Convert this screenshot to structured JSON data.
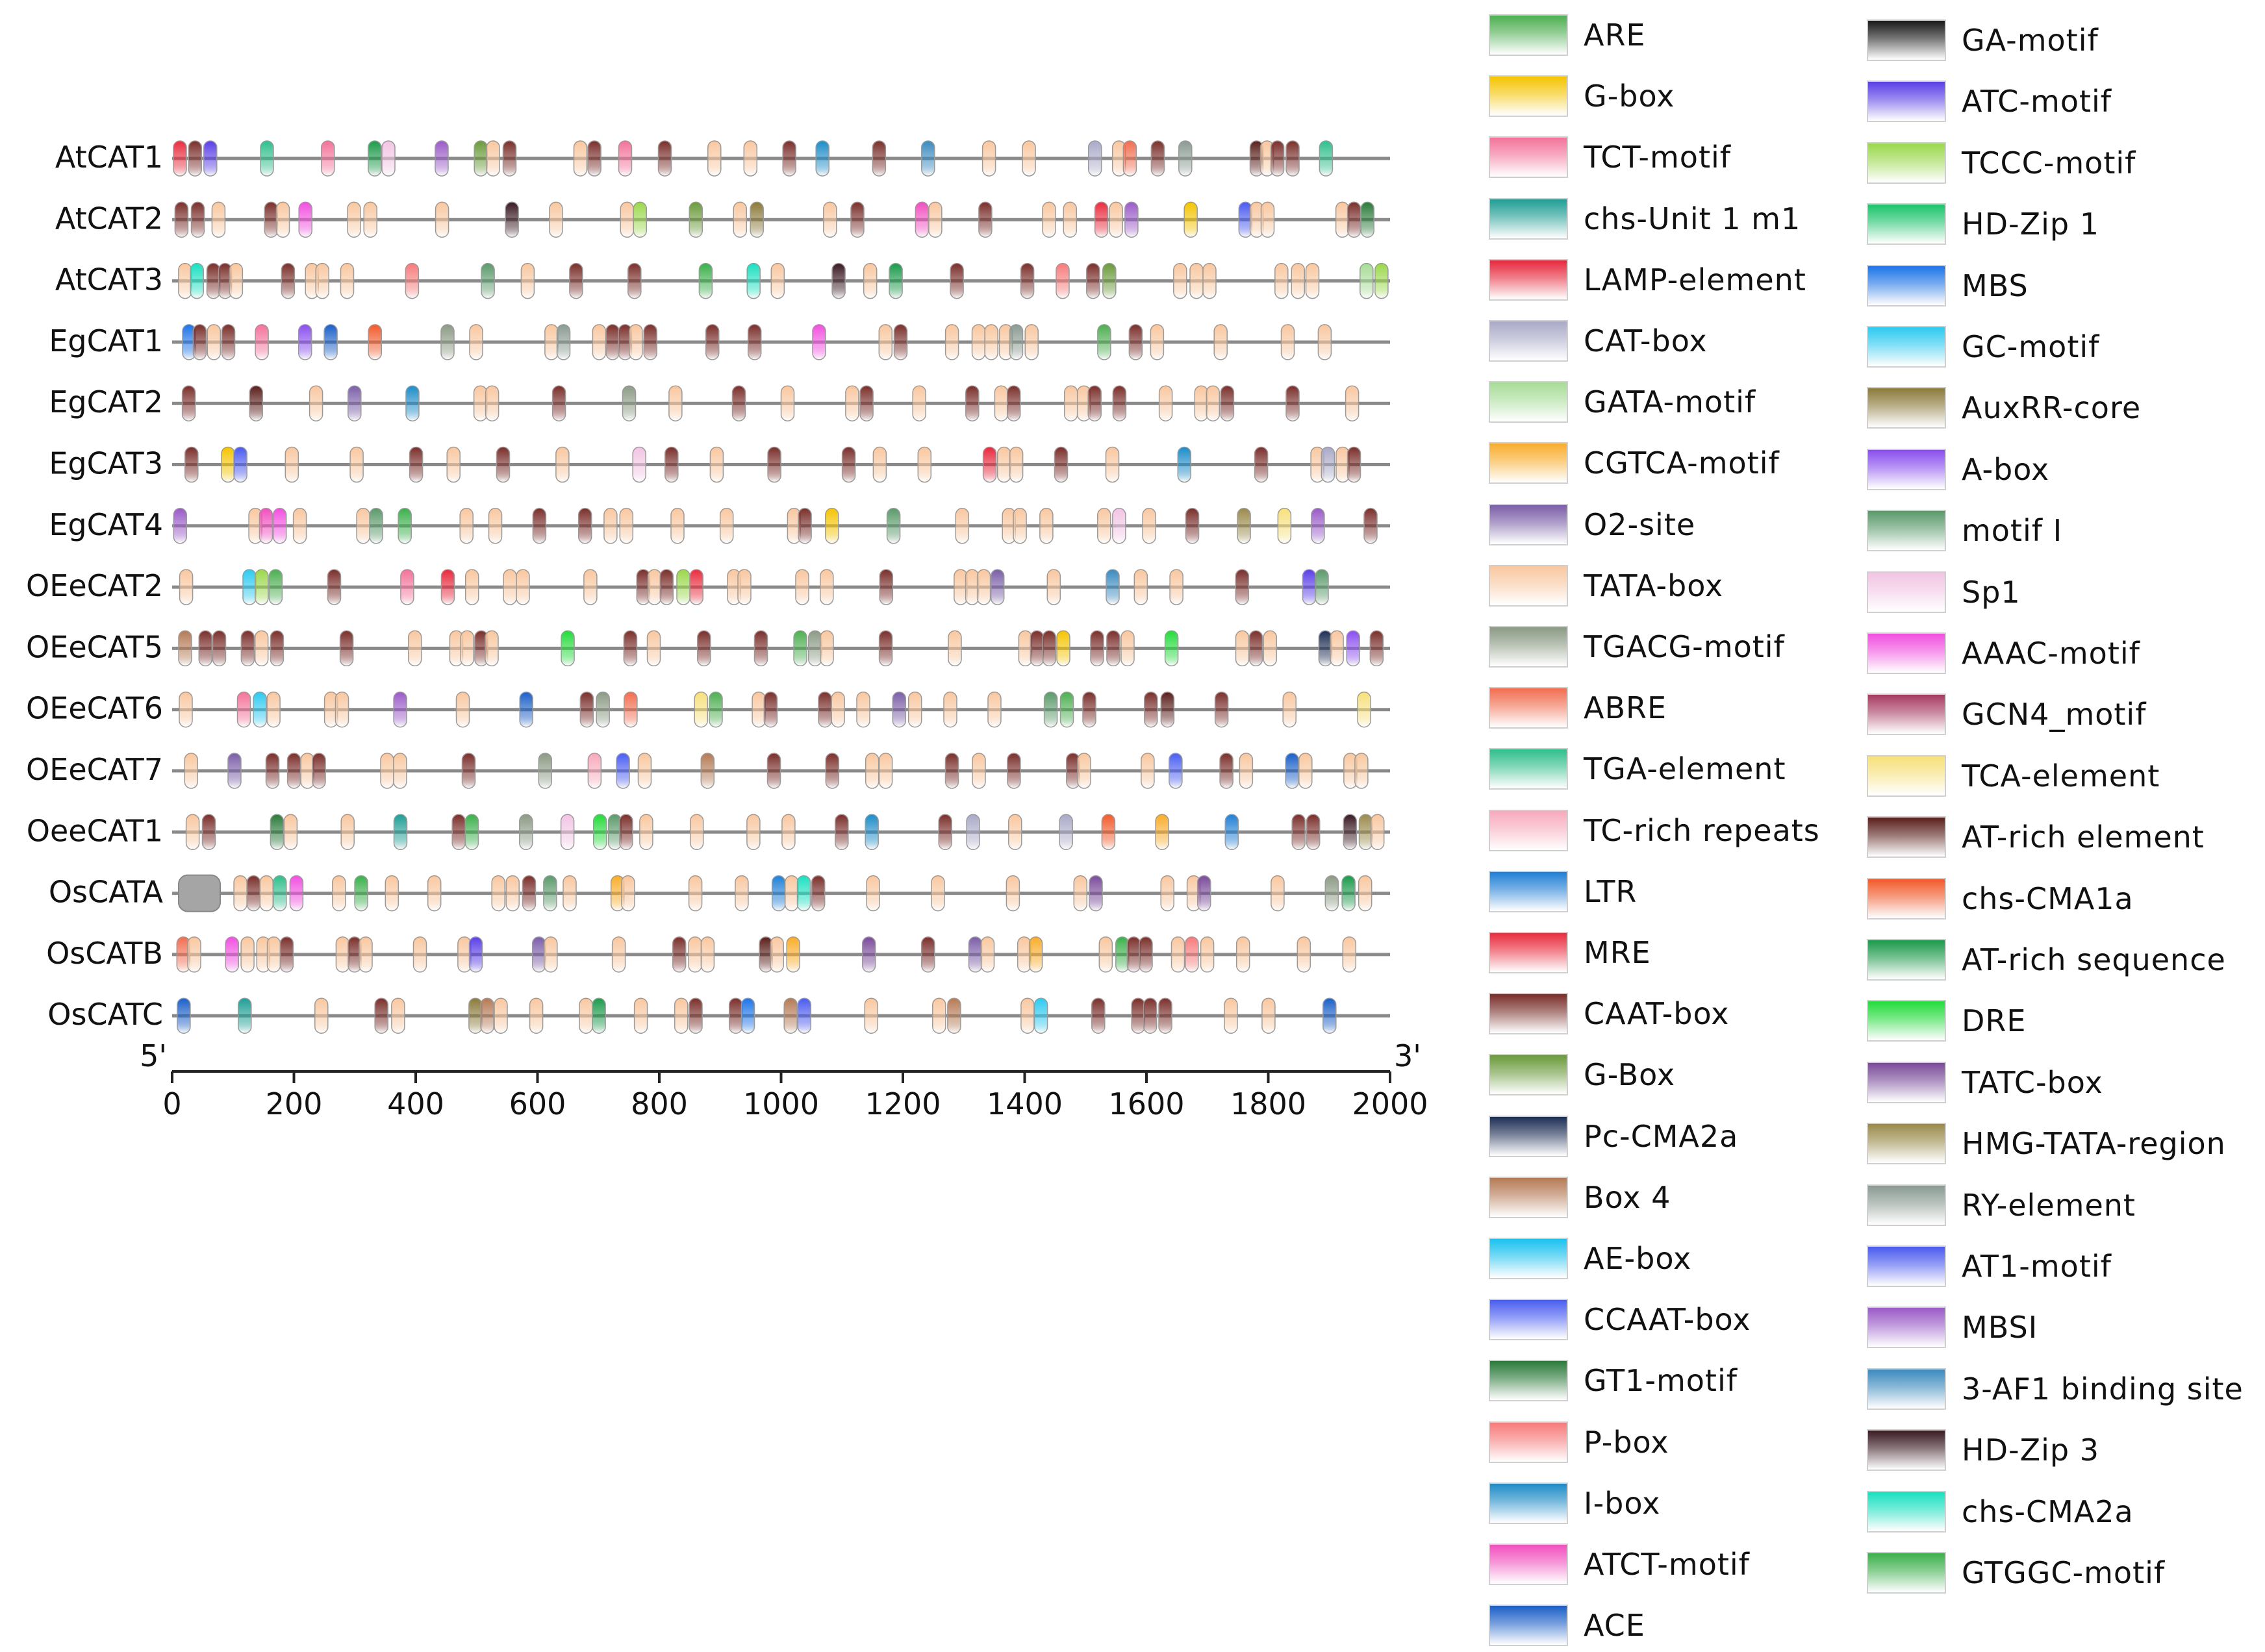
{
  "axis": {
    "start_label": "5'",
    "end_label": "3'",
    "ticks": [
      "0",
      "200",
      "400",
      "600",
      "800",
      "1000",
      "1200",
      "1400",
      "1600",
      "1800",
      "2000"
    ],
    "min": 0,
    "max": 2000
  },
  "genes": [
    "AtCAT1",
    "AtCAT2",
    "AtCAT3",
    "EgCAT1",
    "EgCAT2",
    "EgCAT3",
    "EgCAT4",
    "OEeCAT2",
    "OEeCAT5",
    "OEeCAT6",
    "OEeCAT7",
    "OeeCAT1",
    "OsCATA",
    "OsCATB",
    "OsCATC"
  ],
  "legend_left": [
    {
      "name": "ARE",
      "color": "#4caf50"
    },
    {
      "name": "G-box",
      "color": "#f5c400"
    },
    {
      "name": "TCT-motif",
      "color": "#f4729a"
    },
    {
      "name": "chs-Unit 1 m1",
      "color": "#1e9e95"
    },
    {
      "name": "LAMP-element",
      "color": "#e8283c"
    },
    {
      "name": "CAT-box",
      "color": "#a9a9c8"
    },
    {
      "name": "GATA-motif",
      "color": "#a6dc96"
    },
    {
      "name": "CGTCA-motif",
      "color": "#f9ad2a"
    },
    {
      "name": "O2-site",
      "color": "#7b5ea8"
    },
    {
      "name": "TATA-box",
      "color": "#f9c79f"
    },
    {
      "name": "TGACG-motif",
      "color": "#8b9a84"
    },
    {
      "name": "ABRE",
      "color": "#f26d4f"
    },
    {
      "name": "TGA-element",
      "color": "#2fbf8c"
    },
    {
      "name": "TC-rich repeats",
      "color": "#f8a9bb"
    },
    {
      "name": "LTR",
      "color": "#1f7fd6"
    },
    {
      "name": "MRE",
      "color": "#ea2c3e"
    },
    {
      "name": "CAAT-box",
      "color": "#7a2e2a"
    },
    {
      "name": "G-Box",
      "color": "#6a9a3a"
    },
    {
      "name": "Pc-CMA2a",
      "color": "#1d2e55"
    },
    {
      "name": "Box 4",
      "color": "#b57a55"
    },
    {
      "name": "AE-box",
      "color": "#19c2f0"
    },
    {
      "name": "CCAAT-box",
      "color": "#4a5ef2"
    },
    {
      "name": "GT1-motif",
      "color": "#2a7a3a"
    },
    {
      "name": "P-box",
      "color": "#f77a7a"
    },
    {
      "name": "I-box",
      "color": "#1c8cc8"
    },
    {
      "name": "ATCT-motif",
      "color": "#f24fbf"
    },
    {
      "name": "ACE",
      "color": "#1a5fc8"
    }
  ],
  "legend_right": [
    {
      "name": "GA-motif",
      "color": "#1a1a1a"
    },
    {
      "name": "ATC-motif",
      "color": "#5a3ee8"
    },
    {
      "name": "TCCC-motif",
      "color": "#9ad84a"
    },
    {
      "name": "HD-Zip 1",
      "color": "#19c46a"
    },
    {
      "name": "MBS",
      "color": "#1c74e8"
    },
    {
      "name": "GC-motif",
      "color": "#2ccaf0"
    },
    {
      "name": "AuxRR-core",
      "color": "#8c7a3a"
    },
    {
      "name": "A-box",
      "color": "#8a4ef0"
    },
    {
      "name": "motif I",
      "color": "#5a9a6a"
    },
    {
      "name": "Sp1",
      "color": "#f2c4e4"
    },
    {
      "name": "AAAC-motif",
      "color": "#f24fe0"
    },
    {
      "name": "GCN4_motif",
      "color": "#a83a62"
    },
    {
      "name": "TCA-element",
      "color": "#f7e07a"
    },
    {
      "name": "AT-rich element",
      "color": "#5a1e1a"
    },
    {
      "name": "chs-CMA1a",
      "color": "#f25a2a"
    },
    {
      "name": "AT-rich sequence",
      "color": "#1a9a4a"
    },
    {
      "name": "DRE",
      "color": "#22dc3a"
    },
    {
      "name": "TATC-box",
      "color": "#7a4a9a"
    },
    {
      "name": "HMG-TATA-region",
      "color": "#9a8a4a"
    },
    {
      "name": "RY-element",
      "color": "#8a9a92"
    },
    {
      "name": "AT1-motif",
      "color": "#4a5af0"
    },
    {
      "name": "MBSI",
      "color": "#9a5ac8"
    },
    {
      "name": "3-AF1 binding site",
      "color": "#3a8abf"
    },
    {
      "name": "HD-Zip 3",
      "color": "#3a1a22"
    },
    {
      "name": "chs-CMA2a",
      "color": "#1ae0c0"
    },
    {
      "name": "GTGGC-motif",
      "color": "#3ab04a"
    }
  ]
}
